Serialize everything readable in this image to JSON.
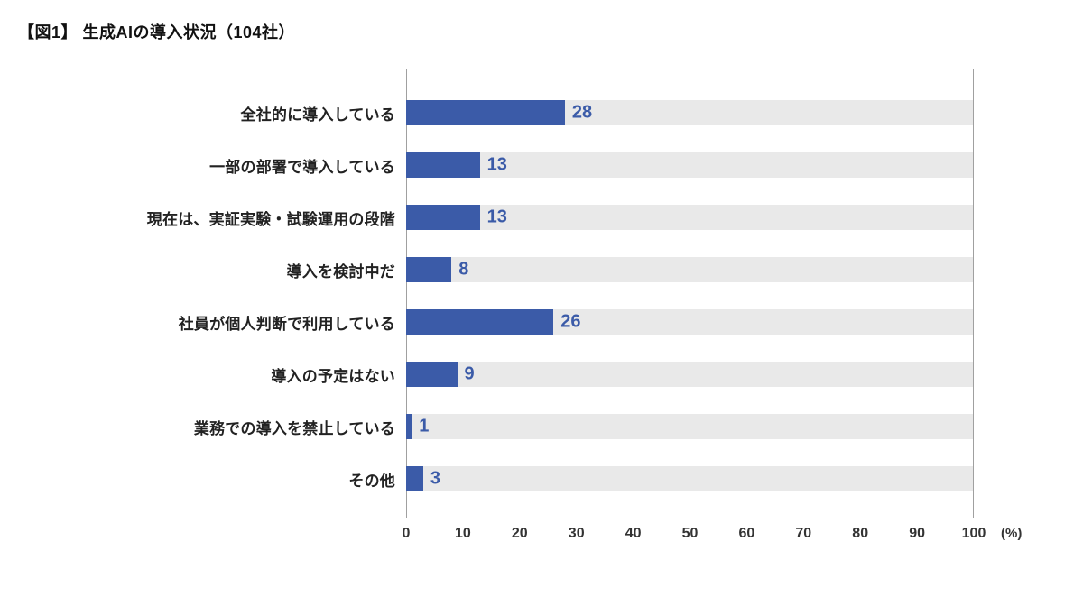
{
  "page": {
    "title": "【図1】 生成AIの導入状況（104社）"
  },
  "chart_data": {
    "type": "bar",
    "orientation": "horizontal",
    "title": "【図1】 生成AIの導入状況（104社）",
    "categories": [
      "全社的に導入している",
      "一部の部署で導入している",
      "現在は、実証実験・試験運用の段階",
      "導入を検討中だ",
      "社員が個人判断で利用している",
      "導入の予定はない",
      "業務での導入を禁止している",
      "その他"
    ],
    "values": [
      28,
      13,
      13,
      8,
      26,
      9,
      1,
      3
    ],
    "xlabel": "(%)",
    "xlim": [
      0,
      100
    ],
    "xticks": [
      0,
      10,
      20,
      30,
      40,
      50,
      60,
      70,
      80,
      90,
      100
    ],
    "grid": false,
    "legend": null,
    "colors": {
      "bar": "#3b5ba8",
      "track": "#e9e9e9",
      "value_label": "#3b5ba8",
      "axis_line": "#a0a0a0"
    }
  }
}
